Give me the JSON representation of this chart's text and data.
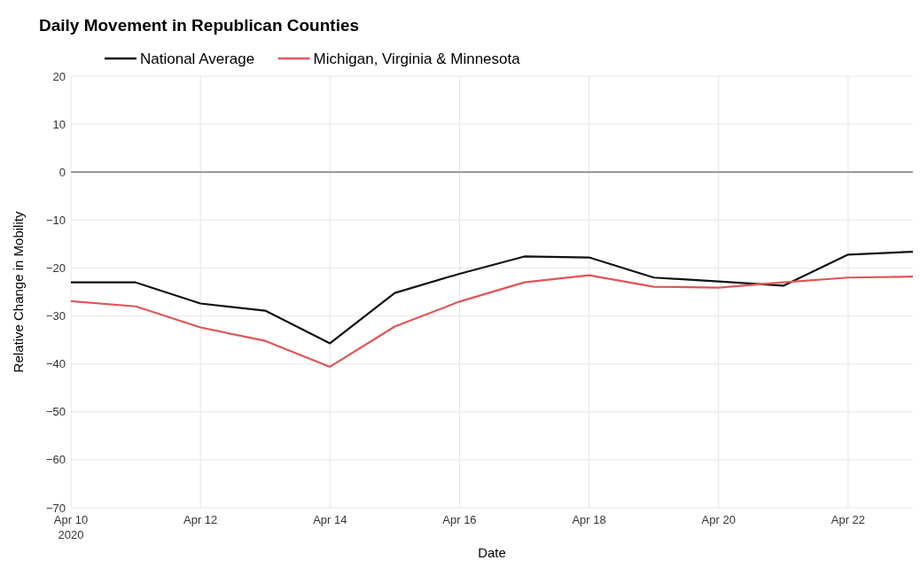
{
  "chart_data": {
    "type": "line",
    "title": "Daily Movement in Republican Counties",
    "xlabel": "Date",
    "ylabel": "Relative Change in Mobility",
    "x": [
      "2020-04-10",
      "2020-04-11",
      "2020-04-12",
      "2020-04-13",
      "2020-04-14",
      "2020-04-15",
      "2020-04-16",
      "2020-04-17",
      "2020-04-18",
      "2020-04-19",
      "2020-04-20",
      "2020-04-21",
      "2020-04-22",
      "2020-04-23"
    ],
    "series": [
      {
        "name": "National Average",
        "color": "#111111",
        "values": [
          -23.0,
          -23.0,
          -27.4,
          -28.9,
          -35.7,
          -25.2,
          -21.2,
          -17.6,
          -17.8,
          -22.0,
          -22.8,
          -23.7,
          -17.2,
          -16.6
        ]
      },
      {
        "name": "Michigan, Virginia & Minnesota",
        "color": "#e05555",
        "values": [
          -26.9,
          -28.0,
          -32.4,
          -35.2,
          -40.6,
          -32.2,
          -27.0,
          -23.0,
          -21.5,
          -23.9,
          -24.1,
          -23.0,
          -22.0,
          -21.8
        ]
      }
    ],
    "xlim": [
      "2020-04-10",
      "2020-04-23"
    ],
    "xticks": [
      {
        "value": "2020-04-10",
        "label": "Apr 10\n2020"
      },
      {
        "value": "2020-04-12",
        "label": "Apr 12"
      },
      {
        "value": "2020-04-14",
        "label": "Apr 14"
      },
      {
        "value": "2020-04-16",
        "label": "Apr 16"
      },
      {
        "value": "2020-04-18",
        "label": "Apr 18"
      },
      {
        "value": "2020-04-20",
        "label": "Apr 20"
      },
      {
        "value": "2020-04-22",
        "label": "Apr 22"
      }
    ],
    "ylim": [
      -70,
      20
    ],
    "yticks": [
      {
        "value": -70,
        "label": "−70"
      },
      {
        "value": -60,
        "label": "−60"
      },
      {
        "value": -50,
        "label": "−50"
      },
      {
        "value": -40,
        "label": "−40"
      },
      {
        "value": -30,
        "label": "−30"
      },
      {
        "value": -20,
        "label": "−20"
      },
      {
        "value": -10,
        "label": "−10"
      },
      0,
      10,
      20
    ],
    "ref_lines": [
      {
        "axis": "y",
        "value": 0,
        "color": "#666666"
      }
    ],
    "grid": true,
    "legend": "top left",
    "line_style": "solid"
  }
}
